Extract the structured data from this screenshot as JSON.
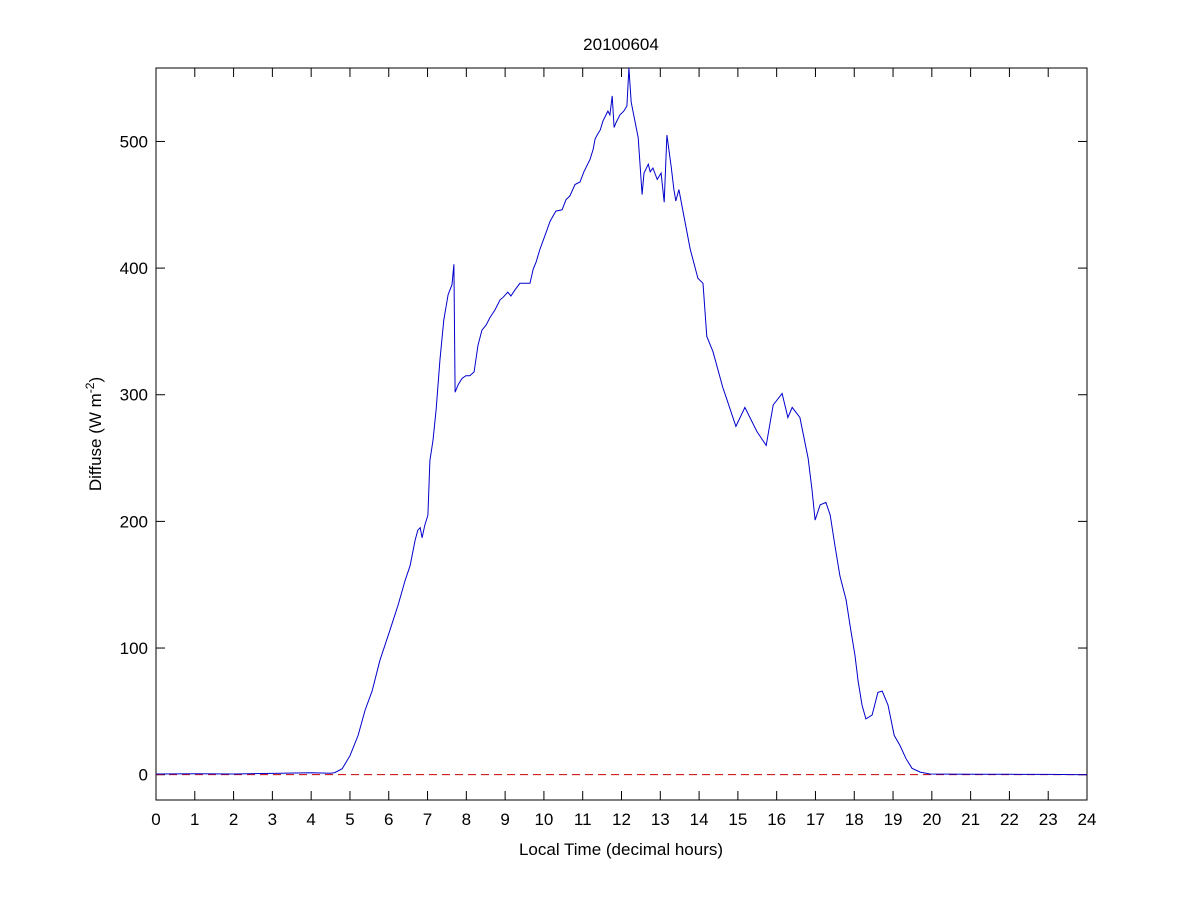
{
  "chart_data": {
    "type": "line",
    "title": "20100604",
    "xlabel": "Local Time (decimal hours)",
    "ylabel": "Diffuse (W m",
    "ylabel_sup": "-2",
    "ylabel_end": ")",
    "xlim": [
      0,
      24
    ],
    "ylim": [
      -20,
      558
    ],
    "xticks": [
      0,
      1,
      2,
      3,
      4,
      5,
      6,
      7,
      8,
      9,
      10,
      11,
      12,
      13,
      14,
      15,
      16,
      17,
      18,
      19,
      20,
      21,
      22,
      23,
      24
    ],
    "yticks": [
      0,
      100,
      200,
      300,
      400,
      500
    ],
    "grid": false,
    "line_color": "#0000cc",
    "reference_line": {
      "y": 0,
      "style": "dashed",
      "color": "#cc0000"
    },
    "series": [
      {
        "x": [
          0,
          1,
          2,
          3,
          4,
          4.5,
          4.61,
          4.8,
          5.0,
          5.21,
          5.39,
          5.57,
          5.77,
          6.03,
          6.24,
          6.42,
          6.55,
          6.68,
          6.75,
          6.81,
          6.86,
          6.93,
          7.01,
          7.06,
          7.14,
          7.22,
          7.32,
          7.42,
          7.53,
          7.63,
          7.68,
          7.71,
          7.79,
          7.89,
          7.99,
          8.09,
          8.2,
          8.3,
          8.4,
          8.51,
          8.61,
          8.74,
          8.87,
          8.95,
          9.07,
          9.15,
          9.26,
          9.38,
          9.51,
          9.64,
          9.72,
          9.8,
          9.9,
          10.03,
          10.16,
          10.31,
          10.47,
          10.57,
          10.67,
          10.8,
          10.93,
          11.03,
          11.19,
          11.27,
          11.32,
          11.39,
          11.45,
          11.52,
          11.6,
          11.65,
          11.7,
          11.76,
          11.81,
          11.86,
          11.96,
          12.06,
          12.14,
          12.19,
          12.25,
          12.43,
          12.53,
          12.58,
          12.69,
          12.74,
          12.81,
          12.92,
          13.02,
          13.1,
          13.17,
          13.28,
          13.35,
          13.4,
          13.48,
          13.59,
          13.77,
          13.97,
          14.1,
          14.2,
          14.36,
          14.61,
          14.72,
          14.95,
          15.18,
          15.49,
          15.73,
          15.91,
          16.14,
          16.29,
          16.4,
          16.6,
          16.81,
          16.91,
          16.99,
          17.12,
          17.27,
          17.38,
          17.5,
          17.63,
          17.79,
          17.89,
          18.02,
          18.1,
          18.2,
          18.3,
          18.46,
          18.61,
          18.72,
          18.87,
          19.03,
          19.18,
          19.33,
          19.49,
          19.7,
          19.95,
          21,
          22,
          23,
          24
        ],
        "y": [
          0.5,
          0.8,
          0.5,
          1,
          1.5,
          1.2,
          1.6,
          4.7,
          15,
          31,
          51,
          66,
          90,
          114,
          134,
          153,
          165,
          185,
          193,
          195,
          187,
          197,
          205,
          248,
          264,
          288,
          328,
          359,
          379,
          387,
          403,
          302,
          308,
          313,
          315,
          315,
          318,
          339,
          351,
          355,
          361,
          367,
          375,
          377,
          381,
          378,
          383,
          388,
          388,
          388,
          399,
          405,
          415,
          426,
          437,
          445,
          446,
          454,
          457,
          466,
          468,
          476,
          486,
          494,
          502,
          506,
          509,
          516,
          521,
          524,
          521,
          536,
          511,
          515,
          521,
          524,
          528,
          558,
          531,
          503,
          458,
          475,
          482,
          476,
          479,
          470,
          475,
          452,
          505,
          480,
          462,
          453,
          462,
          444,
          415,
          392,
          388,
          346,
          334,
          306,
          296,
          275,
          290,
          271,
          260,
          292,
          301,
          282,
          290,
          282,
          250,
          225,
          201,
          213,
          215,
          205,
          181,
          157,
          138,
          118,
          94,
          74,
          55,
          44,
          47,
          65,
          66,
          55,
          31,
          23,
          13,
          5,
          2,
          0.5,
          0.3,
          0.3,
          0.2,
          0
        ]
      }
    ]
  }
}
